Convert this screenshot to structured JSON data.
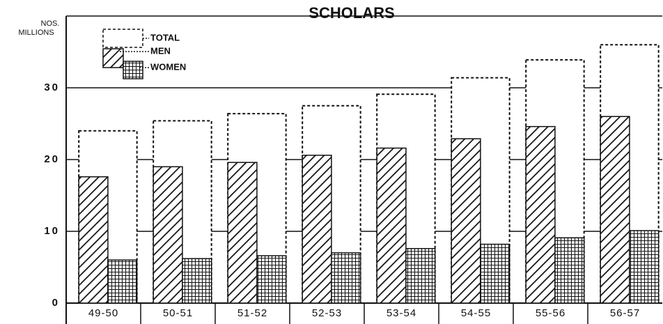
{
  "chart_data": {
    "type": "bar",
    "title": "SCHOLARS",
    "y_label": "NOS. MILLIONS",
    "categories": [
      "49-50",
      "50-51",
      "51-52",
      "52-53",
      "53-54",
      "54-55",
      "55-56",
      "56-57"
    ],
    "series": [
      {
        "name": "TOTAL",
        "color": "#111",
        "values": [
          24.0,
          25.4,
          26.4,
          27.5,
          29.1,
          31.4,
          33.9,
          36.0
        ]
      },
      {
        "name": "MEN",
        "color": "#111",
        "values": [
          17.6,
          19.0,
          19.6,
          20.6,
          21.6,
          22.9,
          24.6,
          26.0
        ]
      },
      {
        "name": "WOMEN",
        "color": "#111",
        "values": [
          6.0,
          6.2,
          6.6,
          7.0,
          7.6,
          8.2,
          9.1,
          10.1
        ]
      }
    ],
    "ylim": [
      0,
      40
    ],
    "yticks": [
      0,
      10,
      20,
      30
    ],
    "grid": true
  }
}
